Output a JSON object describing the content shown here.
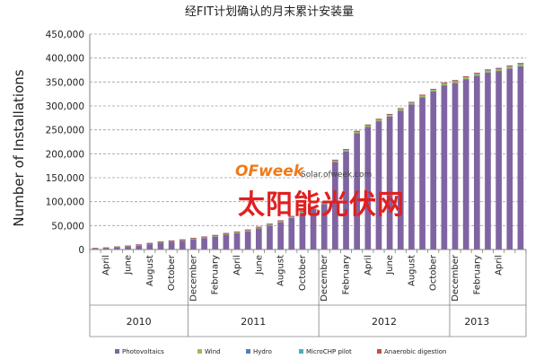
{
  "watermark": {
    "logo": "OFweek",
    "site": "Solar.ofweek.com",
    "cn": "太阳能光伏网"
  },
  "colors": {
    "photovoltaics": "#8064a2",
    "wind": "#9bbb59",
    "hydro": "#4f81bd",
    "microchp": "#4bacc6",
    "anaerobic": "#c0504d",
    "grid": "#a0a0a0",
    "axis": "#808080",
    "text": "#222222"
  },
  "chart_data": {
    "type": "bar",
    "stacked": true,
    "title": "经FIT计划确认的月末累计安装量",
    "ylabel": "Number of Installations",
    "xlabel": "",
    "ylim": [
      0,
      450000
    ],
    "yticks": [
      "0",
      "50,000",
      "100,000",
      "150,000",
      "200,000",
      "250,000",
      "300,000",
      "350,000",
      "400,000",
      "450,000"
    ],
    "grid": "horizontal dashed",
    "legend_position": "bottom",
    "month_labels": [
      {
        "index": 1,
        "label": "April"
      },
      {
        "index": 3,
        "label": "June"
      },
      {
        "index": 5,
        "label": "August"
      },
      {
        "index": 7,
        "label": "October"
      },
      {
        "index": 9,
        "label": "December"
      },
      {
        "index": 11,
        "label": "February"
      },
      {
        "index": 13,
        "label": "April"
      },
      {
        "index": 15,
        "label": "June"
      },
      {
        "index": 17,
        "label": "August"
      },
      {
        "index": 19,
        "label": "October"
      },
      {
        "index": 21,
        "label": "December"
      },
      {
        "index": 23,
        "label": "February"
      },
      {
        "index": 25,
        "label": "April"
      },
      {
        "index": 27,
        "label": "June"
      },
      {
        "index": 29,
        "label": "August"
      },
      {
        "index": 31,
        "label": "October"
      },
      {
        "index": 33,
        "label": "December"
      },
      {
        "index": 35,
        "label": "February"
      },
      {
        "index": 37,
        "label": "April"
      }
    ],
    "years": [
      {
        "label": "2010",
        "start": 0,
        "end": 9
      },
      {
        "label": "2011",
        "start": 9,
        "end": 21
      },
      {
        "label": "2012",
        "start": 21,
        "end": 33
      },
      {
        "label": "2013",
        "start": 33,
        "end": 38
      }
    ],
    "series": [
      {
        "name": "Photovoltaics",
        "values": [
          1000,
          2000,
          4000,
          6000,
          8000,
          11000,
          14000,
          16000,
          18000,
          21000,
          24000,
          27000,
          31000,
          34000,
          38000,
          44000,
          50000,
          57000,
          66000,
          76000,
          85000,
          95000,
          183000,
          205000,
          243000,
          256000,
          268000,
          278000,
          290000,
          303000,
          318000,
          330000,
          343000,
          348000,
          356000,
          363000,
          370000,
          373000,
          378000,
          383000
        ]
      },
      {
        "name": "Wind",
        "values": [
          300,
          400,
          500,
          600,
          700,
          800,
          900,
          1000,
          1100,
          1200,
          1300,
          1400,
          1500,
          1600,
          1700,
          1800,
          1900,
          2000,
          2100,
          2200,
          2300,
          2400,
          2500,
          2600,
          2700,
          2800,
          2900,
          3000,
          3100,
          3200,
          3300,
          3400,
          3500,
          3600,
          3700,
          3800,
          3900,
          4000,
          4100,
          4200
        ]
      },
      {
        "name": "Hydro",
        "values": [
          100,
          100,
          100,
          100,
          150,
          150,
          150,
          150,
          200,
          200,
          200,
          200,
          250,
          250,
          250,
          250,
          300,
          300,
          300,
          300,
          350,
          350,
          350,
          350,
          400,
          400,
          400,
          400,
          450,
          450,
          450,
          450,
          500,
          500,
          500,
          500,
          550,
          550,
          550,
          550
        ]
      },
      {
        "name": "MicroCHP pilot",
        "values": [
          50,
          50,
          50,
          50,
          60,
          60,
          60,
          60,
          70,
          70,
          70,
          70,
          80,
          80,
          80,
          80,
          90,
          90,
          90,
          90,
          100,
          100,
          100,
          100,
          110,
          110,
          110,
          110,
          120,
          120,
          120,
          120,
          130,
          130,
          130,
          130,
          140,
          140,
          140,
          140
        ]
      },
      {
        "name": "Anaerobic digestion",
        "values": [
          10,
          10,
          10,
          10,
          12,
          12,
          12,
          12,
          14,
          14,
          14,
          14,
          16,
          16,
          16,
          16,
          18,
          18,
          18,
          18,
          20,
          20,
          20,
          20,
          22,
          22,
          22,
          22,
          24,
          24,
          24,
          24,
          26,
          26,
          26,
          26,
          28,
          28,
          28,
          28
        ]
      }
    ]
  }
}
